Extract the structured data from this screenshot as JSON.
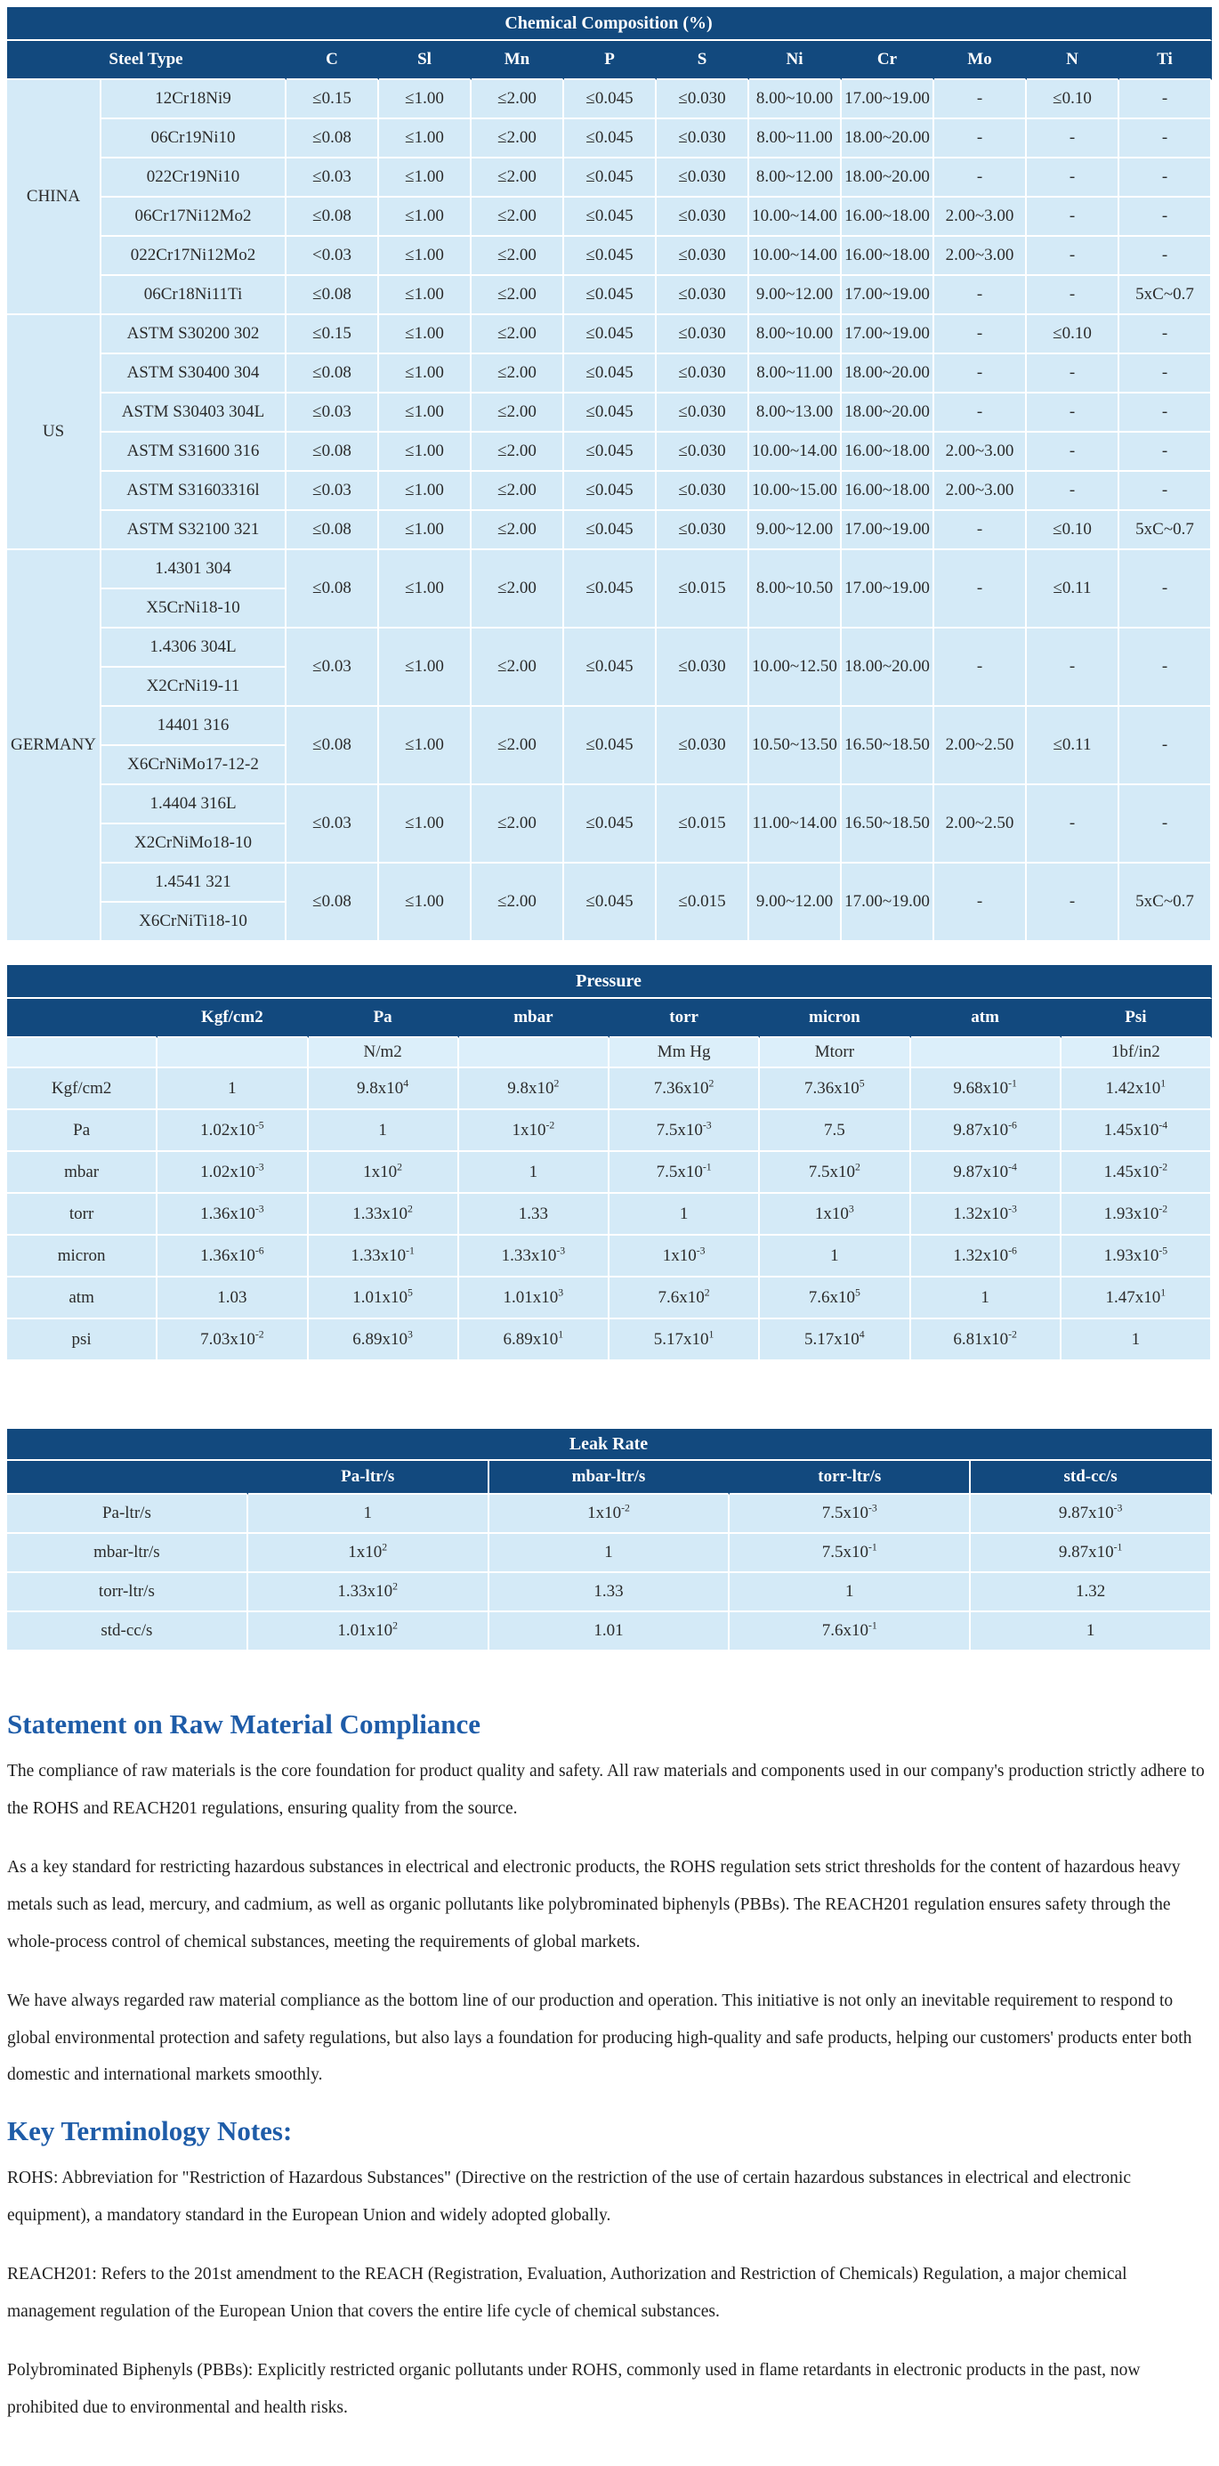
{
  "chemical_table": {
    "title": "Chemical Composition (%)",
    "steel_type_header": "Steel Type",
    "element_headers": [
      "C",
      "Sl",
      "Mn",
      "P",
      "S",
      "Ni",
      "Cr",
      "Mo",
      "N",
      "Ti"
    ],
    "groups": [
      {
        "country": "CHINA",
        "rows": [
          {
            "names": [
              "12Cr18Ni9"
            ],
            "values": [
              "≤0.15",
              "≤1.00",
              "≤2.00",
              "≤0.045",
              "≤0.030",
              "8.00~10.00",
              "17.00~19.00",
              "-",
              "≤0.10",
              "-"
            ]
          },
          {
            "names": [
              "06Cr19Ni10"
            ],
            "values": [
              "≤0.08",
              "≤1.00",
              "≤2.00",
              "≤0.045",
              "≤0.030",
              "8.00~11.00",
              "18.00~20.00",
              "-",
              "-",
              "-"
            ]
          },
          {
            "names": [
              "022Cr19Ni10"
            ],
            "values": [
              "≤0.03",
              "≤1.00",
              "≤2.00",
              "≤0.045",
              "≤0.030",
              "8.00~12.00",
              "18.00~20.00",
              "-",
              "-",
              "-"
            ]
          },
          {
            "names": [
              "06Cr17Ni12Mo2"
            ],
            "values": [
              "≤0.08",
              "≤1.00",
              "≤2.00",
              "≤0.045",
              "≤0.030",
              "10.00~14.00",
              "16.00~18.00",
              "2.00~3.00",
              "-",
              "-"
            ]
          },
          {
            "names": [
              "022Cr17Ni12Mo2"
            ],
            "values": [
              "<0.03",
              "≤1.00",
              "≤2.00",
              "≤0.045",
              "≤0.030",
              "10.00~14.00",
              "16.00~18.00",
              "2.00~3.00",
              "-",
              "-"
            ]
          },
          {
            "names": [
              "06Cr18Ni11Ti"
            ],
            "values": [
              "≤0.08",
              "≤1.00",
              "≤2.00",
              "≤0.045",
              "≤0.030",
              "9.00~12.00",
              "17.00~19.00",
              "-",
              "-",
              "5xC~0.7"
            ]
          }
        ]
      },
      {
        "country": "US",
        "rows": [
          {
            "names": [
              "ASTM S30200 302"
            ],
            "values": [
              "≤0.15",
              "≤1.00",
              "≤2.00",
              "≤0.045",
              "≤0.030",
              "8.00~10.00",
              "17.00~19.00",
              "-",
              "≤0.10",
              "-"
            ]
          },
          {
            "names": [
              "ASTM S30400 304"
            ],
            "values": [
              "≤0.08",
              "≤1.00",
              "≤2.00",
              "≤0.045",
              "≤0.030",
              "8.00~11.00",
              "18.00~20.00",
              "-",
              "-",
              "-"
            ]
          },
          {
            "names": [
              "ASTM S30403 304L"
            ],
            "values": [
              "≤0.03",
              "≤1.00",
              "≤2.00",
              "≤0.045",
              "≤0.030",
              "8.00~13.00",
              "18.00~20.00",
              "-",
              "-",
              "-"
            ]
          },
          {
            "names": [
              "ASTM S31600 316"
            ],
            "values": [
              "≤0.08",
              "≤1.00",
              "≤2.00",
              "≤0.045",
              "≤0.030",
              "10.00~14.00",
              "16.00~18.00",
              "2.00~3.00",
              "-",
              "-"
            ]
          },
          {
            "names": [
              "ASTM S31603316l"
            ],
            "values": [
              "≤0.03",
              "≤1.00",
              "≤2.00",
              "≤0.045",
              "≤0.030",
              "10.00~15.00",
              "16.00~18.00",
              "2.00~3.00",
              "-",
              "-"
            ]
          },
          {
            "names": [
              "ASTM S32100 321"
            ],
            "values": [
              "≤0.08",
              "≤1.00",
              "≤2.00",
              "≤0.045",
              "≤0.030",
              "9.00~12.00",
              "17.00~19.00",
              "-",
              "≤0.10",
              "5xC~0.7"
            ]
          }
        ]
      },
      {
        "country": "GERMANY",
        "rows": [
          {
            "names": [
              "1.4301 304",
              "X5CrNi18-10"
            ],
            "values": [
              "≤0.08",
              "≤1.00",
              "≤2.00",
              "≤0.045",
              "≤0.015",
              "8.00~10.50",
              "17.00~19.00",
              "-",
              "≤0.11",
              "-"
            ]
          },
          {
            "names": [
              "1.4306 304L",
              "X2CrNi19-11"
            ],
            "values": [
              "≤0.03",
              "≤1.00",
              "≤2.00",
              "≤0.045",
              "≤0.030",
              "10.00~12.50",
              "18.00~20.00",
              "-",
              "-",
              "-"
            ]
          },
          {
            "names": [
              "14401 316",
              "X6CrNiMo17-12-2"
            ],
            "values": [
              "≤0.08",
              "≤1.00",
              "≤2.00",
              "≤0.045",
              "≤0.030",
              "10.50~13.50",
              "16.50~18.50",
              "2.00~2.50",
              "≤0.11",
              "-"
            ]
          },
          {
            "names": [
              "1.4404 316L",
              "X2CrNiMo18-10"
            ],
            "values": [
              "≤0.03",
              "≤1.00",
              "≤2.00",
              "≤0.045",
              "≤0.015",
              "11.00~14.00",
              "16.50~18.50",
              "2.00~2.50",
              "-",
              "-"
            ]
          },
          {
            "names": [
              "1.4541 321",
              "X6CrNiTi18-10"
            ],
            "values": [
              "≤0.08",
              "≤1.00",
              "≤2.00",
              "≤0.045",
              "≤0.015",
              "9.00~12.00",
              "17.00~19.00",
              "-",
              "-",
              "5xC~0.7"
            ]
          }
        ]
      }
    ]
  },
  "pressure_table": {
    "title": "Pressure",
    "headers": [
      "",
      "Kgf/cm2",
      "Pa",
      "mbar",
      "torr",
      "micron",
      "atm",
      "Psi"
    ],
    "subheaders": [
      "",
      "",
      "N/m2",
      "",
      "Mm Hg",
      "Mtorr",
      "",
      "1bf/in2"
    ],
    "rows": [
      {
        "label": "Kgf/cm2",
        "values": [
          "1",
          "9.8x10^4",
          "9.8x10^2",
          "7.36x10^2",
          "7.36x10^5",
          "9.68x10^-1",
          "1.42x10^1"
        ]
      },
      {
        "label": "Pa",
        "values": [
          "1.02x10^-5",
          "1",
          "1x10^-2",
          "7.5x10^-3",
          "7.5",
          "9.87x10^-6",
          "1.45x10^-4"
        ]
      },
      {
        "label": "mbar",
        "values": [
          "1.02x10^-3",
          "1x10^2",
          "1",
          "7.5x10^-1",
          "7.5x10^2",
          "9.87x10^-4",
          "1.45x10^-2"
        ]
      },
      {
        "label": "torr",
        "values": [
          "1.36x10^-3",
          "1.33x10^2",
          "1.33",
          "1",
          "1x10^3",
          "1.32x10^-3",
          "1.93x10^-2"
        ]
      },
      {
        "label": "micron",
        "values": [
          "1.36x10^-6",
          "1.33x10^-1",
          "1.33x10^-3",
          "1x10^-3",
          "1",
          "1.32x10^-6",
          "1.93x10^-5"
        ]
      },
      {
        "label": "atm",
        "values": [
          "1.03",
          "1.01x10^5",
          "1.01x10^3",
          "7.6x10^2",
          "7.6x10^5",
          "1",
          "1.47x10^1"
        ]
      },
      {
        "label": "psi",
        "values": [
          "7.03x10^-2",
          "6.89x10^3",
          "6.89x10^1",
          "5.17x10^1",
          "5.17x10^4",
          "6.81x10^-2",
          "1"
        ]
      }
    ]
  },
  "leak_table": {
    "title": "Leak Rate",
    "headers": [
      "",
      "Pa-ltr/s",
      "mbar-ltr/s",
      "torr-ltr/s",
      "std-cc/s"
    ],
    "rows": [
      {
        "label": "Pa-ltr/s",
        "values": [
          "1",
          "1x10^-2",
          "7.5x10^-3",
          "9.87x10^-3"
        ]
      },
      {
        "label": "mbar-ltr/s",
        "values": [
          "1x10^2",
          "1",
          "7.5x10^-1",
          "9.87x10^-1"
        ]
      },
      {
        "label": "torr-ltr/s",
        "values": [
          "1.33x10^2",
          "1.33",
          "1",
          "1.32"
        ]
      },
      {
        "label": "std-cc/s",
        "values": [
          "1.01x10^2",
          "1.01",
          "7.6x10^-1",
          "1"
        ]
      }
    ]
  },
  "statement_section": {
    "heading": "Statement on Raw Material Compliance",
    "paragraphs": [
      "The compliance of raw materials is the core foundation for product quality and safety. All raw materials and components used in our company's production strictly adhere to the ROHS and REACH201 regulations, ensuring quality from the source.",
      "As a key standard for restricting hazardous substances in electrical and electronic products, the ROHS regulation sets strict thresholds for the content of hazardous heavy metals such as lead, mercury, and cadmium, as well as organic pollutants like polybrominated biphenyls (PBBs). The REACH201 regulation ensures safety through the whole-process control of chemical substances, meeting the requirements of global markets.",
      "We have always regarded raw material compliance as the bottom line of our production and operation. This initiative is not only an inevitable requirement to respond to global environmental protection and safety regulations, but also lays a foundation for producing high-quality and safe products, helping our customers' products enter both domestic and international markets smoothly."
    ]
  },
  "terminology_section": {
    "heading": "Key Terminology Notes:",
    "paragraphs": [
      "ROHS: Abbreviation for \"Restriction of Hazardous Substances\" (Directive on the restriction of the use of certain hazardous substances in electrical and electronic equipment), a mandatory standard in the European Union and widely adopted globally.",
      "REACH201: Refers to the 201st amendment to the REACH (Registration, Evaluation, Authorization and Restriction of Chemicals) Regulation, a major chemical management regulation of the European Union that covers the entire life cycle of chemical substances.",
      "Polybrominated Biphenyls (PBBs): Explicitly restricted organic pollutants under ROHS, commonly used in flame retardants in electronic products in the past, now prohibited due to environmental and health risks."
    ]
  },
  "colors": {
    "header_blue": "#12497E",
    "cell_blue": "#D4EAF7",
    "heading_text_blue": "#1E5CA8"
  }
}
